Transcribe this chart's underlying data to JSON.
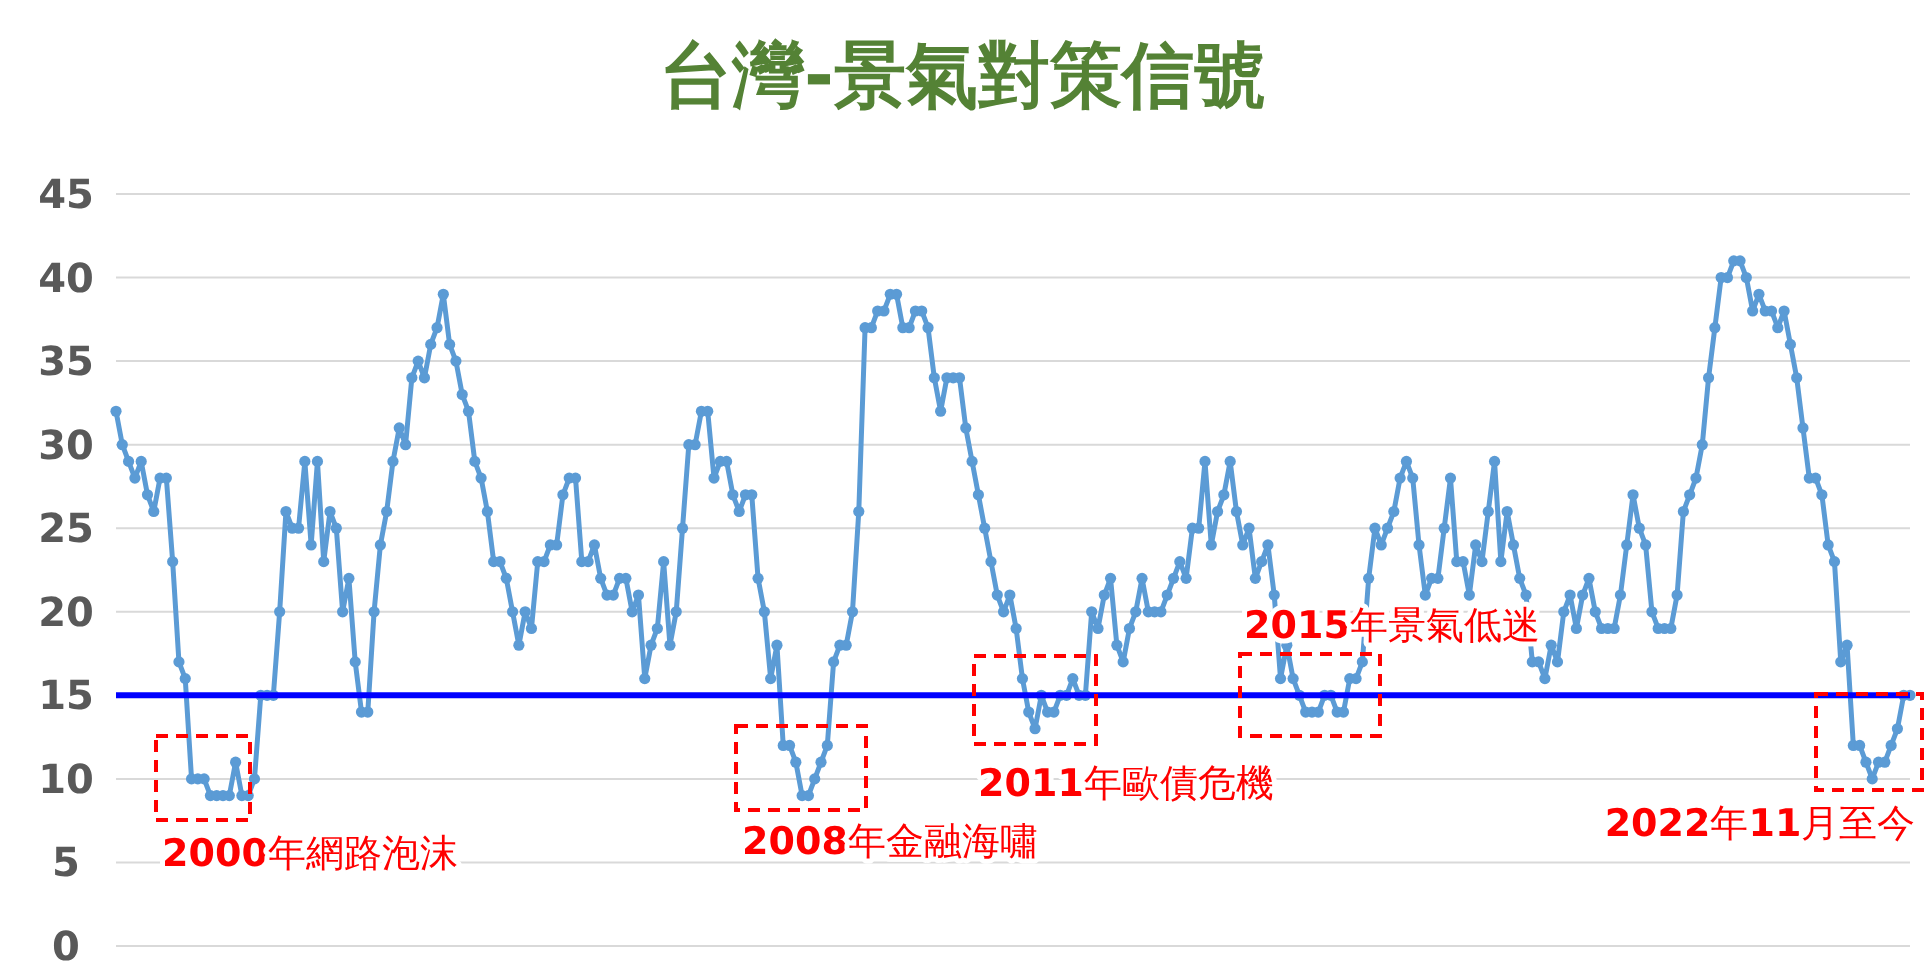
{
  "chart_data": {
    "type": "line",
    "title": "台灣-景氣對策信號",
    "categories": [
      null,
      null,
      null,
      null,
      null,
      null,
      null,
      null,
      null,
      null,
      null,
      null,
      null,
      null,
      null,
      null,
      null,
      null,
      null,
      null,
      null,
      null,
      null,
      null,
      null,
      null,
      null,
      null,
      null,
      null,
      null,
      null,
      null,
      null,
      null,
      null,
      null,
      null,
      null,
      null,
      null,
      null,
      null,
      null,
      null,
      null,
      null,
      null,
      null,
      null,
      null,
      null,
      null,
      null,
      null,
      null,
      null,
      null,
      null,
      null,
      null,
      null,
      null,
      null,
      null,
      null,
      null,
      null,
      null,
      null,
      null,
      null,
      null,
      null,
      null,
      null,
      null,
      null,
      null,
      null,
      null,
      null,
      null,
      null,
      null,
      null,
      null,
      null,
      null,
      null,
      null,
      null,
      null,
      null,
      null,
      null,
      null,
      null,
      null,
      null,
      null,
      null,
      null,
      null,
      null,
      null,
      null,
      null,
      null,
      null,
      null,
      null,
      null,
      null,
      null,
      null,
      null,
      null,
      null,
      null,
      null,
      null,
      null,
      null,
      null,
      null,
      null,
      null,
      null,
      null,
      null,
      null,
      null,
      null,
      null,
      null,
      null,
      null,
      null,
      null,
      null,
      null,
      null,
      null,
      null,
      null,
      null,
      null,
      null,
      null,
      null,
      null,
      null,
      null,
      null,
      null,
      null,
      null,
      null,
      null,
      null,
      null,
      null,
      null,
      null,
      null,
      null,
      null,
      null,
      null,
      null,
      null,
      null,
      null,
      null,
      null,
      null,
      null,
      null,
      null,
      null,
      null,
      null,
      null,
      null,
      null,
      null,
      null,
      null,
      null,
      null,
      null,
      null,
      null,
      null,
      null,
      null,
      null,
      null,
      null,
      null,
      null,
      null,
      null,
      null,
      null,
      null,
      null,
      null,
      null,
      null,
      null,
      null,
      null,
      null,
      null,
      null,
      null,
      null,
      null,
      null,
      null,
      null,
      null,
      null,
      null,
      null,
      null,
      null,
      null,
      null,
      null,
      null,
      null,
      null,
      null,
      null,
      null,
      null,
      null,
      null,
      null,
      null,
      null,
      null,
      null,
      null,
      null,
      null,
      null,
      null,
      null,
      null,
      null,
      null,
      null,
      null,
      null,
      null,
      null,
      null,
      null,
      null,
      null,
      null,
      null,
      null,
      null,
      null,
      null,
      null,
      null,
      null,
      null,
      null,
      null,
      null,
      null,
      null,
      null,
      null,
      null,
      null,
      null,
      null,
      null
    ],
    "series": [
      {
        "color": "#5b9bd5",
        "values": [
          32,
          30,
          29,
          28,
          29,
          27,
          26,
          28,
          28,
          23,
          17,
          16,
          10,
          10,
          10,
          9,
          9,
          9,
          9,
          11,
          9,
          9,
          10,
          15,
          15,
          15,
          20,
          26,
          25,
          25,
          29,
          24,
          29,
          23,
          26,
          25,
          20,
          22,
          17,
          14,
          14,
          20,
          24,
          26,
          29,
          31,
          30,
          34,
          35,
          34,
          36,
          37,
          39,
          36,
          35,
          33,
          32,
          29,
          28,
          26,
          23,
          23,
          22,
          20,
          18,
          20,
          19,
          23,
          23,
          24,
          24,
          27,
          28,
          28,
          23,
          23,
          24,
          22,
          21,
          21,
          22,
          22,
          20,
          21,
          16,
          18,
          19,
          23,
          18,
          20,
          25,
          30,
          30,
          32,
          32,
          28,
          29,
          29,
          27,
          26,
          27,
          27,
          22,
          20,
          16,
          18,
          12,
          12,
          11,
          9,
          9,
          10,
          11,
          12,
          17,
          18,
          18,
          20,
          26,
          37,
          37,
          38,
          38,
          39,
          39,
          37,
          37,
          38,
          38,
          37,
          34,
          32,
          34,
          34,
          34,
          31,
          29,
          27,
          25,
          23,
          21,
          20,
          21,
          19,
          16,
          14,
          13,
          15,
          14,
          14,
          15,
          15,
          16,
          15,
          15,
          20,
          19,
          21,
          22,
          18,
          17,
          19,
          20,
          22,
          20,
          20,
          20,
          21,
          22,
          23,
          22,
          25,
          25,
          29,
          24,
          26,
          27,
          29,
          26,
          24,
          25,
          22,
          23,
          24,
          21,
          16,
          18,
          16,
          15,
          14,
          14,
          14,
          15,
          15,
          14,
          14,
          16,
          16,
          17,
          22,
          25,
          24,
          25,
          26,
          28,
          29,
          28,
          24,
          21,
          22,
          22,
          25,
          28,
          23,
          23,
          21,
          24,
          23,
          26,
          29,
          23,
          26,
          24,
          22,
          21,
          17,
          17,
          16,
          18,
          17,
          20,
          21,
          19,
          21,
          22,
          20,
          19,
          19,
          19,
          21,
          24,
          27,
          25,
          24,
          20,
          19,
          19,
          19,
          21,
          26,
          27,
          28,
          30,
          34,
          37,
          40,
          40,
          41,
          41,
          40,
          38,
          39,
          38,
          38,
          37,
          38,
          36,
          34,
          31,
          28,
          28,
          27,
          24,
          23,
          17,
          18,
          12,
          12,
          11,
          10,
          11,
          11,
          12,
          13,
          15,
          15
        ]
      }
    ],
    "ylim": [
      0,
      45
    ],
    "yticks": [
      0,
      5,
      10,
      15,
      20,
      25,
      30,
      35,
      40,
      45
    ],
    "grid": "y",
    "marker": "circle",
    "line_style": "solid",
    "tick_labels": "y",
    "ref_lines": [
      {
        "axis": "y",
        "value": 15,
        "color": "#0000ff"
      }
    ],
    "annotations": [
      "**2000**年網路泡沫",
      "**2008**年金融海嘯",
      "**2011**年歐債危機",
      "**2015**年景氣低迷",
      "**2022**年**11**月至今"
    ]
  }
}
